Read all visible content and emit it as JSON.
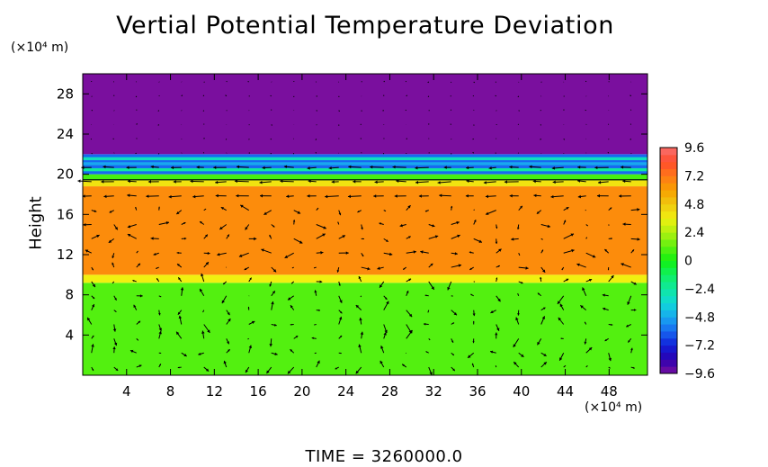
{
  "chart_data": {
    "type": "heatmap",
    "title": "Vertial Potential Temperature Deviation",
    "ylabel": "Height",
    "x_unit_label": "(×10⁴ m)",
    "y_unit_label": "(×10⁴ m)",
    "footer": "TIME  =  3260000.0",
    "xlim": [
      0,
      51.5
    ],
    "ylim": [
      0,
      30
    ],
    "x_ticks": [
      4,
      8,
      12,
      16,
      20,
      24,
      28,
      32,
      36,
      40,
      44,
      48
    ],
    "y_ticks": [
      4,
      8,
      12,
      16,
      20,
      24,
      28
    ],
    "colorbar": {
      "ticks": [
        "9.6",
        "7.2",
        "4.8",
        "2.4",
        "0",
        "−2.4",
        "−4.8",
        "−7.2",
        "−9.6"
      ],
      "range": [
        -9.6,
        9.6
      ]
    },
    "layers": [
      {
        "y_range": [
          0,
          9.2
        ],
        "value": 1.0
      },
      {
        "y_range": [
          9.2,
          10.0
        ],
        "value": 3.6
      },
      {
        "y_range": [
          10.0,
          18.8
        ],
        "value": 6.6
      },
      {
        "y_range": [
          18.8,
          19.4
        ],
        "value": 4.0
      },
      {
        "y_range": [
          19.4,
          20.0
        ],
        "value": 0.8
      },
      {
        "y_range": [
          20.0,
          22.0
        ],
        "value": -6.0
      },
      {
        "y_range": [
          22.0,
          30.0
        ],
        "value": -9.6
      }
    ],
    "vectors": "wind arrows overlaid on a regular grid"
  },
  "colors": {
    "purple": "#8e10a8",
    "green": "#11f010",
    "orange": "#ff8c00"
  }
}
